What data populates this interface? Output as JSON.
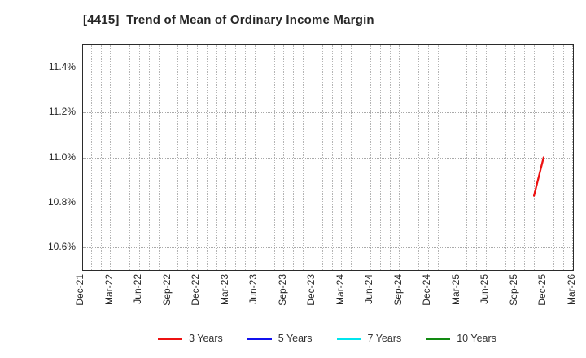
{
  "window": {
    "background_color": "#ffffff"
  },
  "chart_data": {
    "type": "line",
    "title": "[4415]  Trend of Mean of Ordinary Income Margin",
    "xlabel": "",
    "ylabel": "",
    "ylim": [
      10.5,
      11.5
    ],
    "grid": "dotted gray grid: horizontal lines every 0.2%, vertical lines every month",
    "legend_position": "bottom-center",
    "border_color": "#2b2b2b",
    "gridline_color": "#ababab",
    "y_ticks": [
      {
        "label": "11.4%",
        "value": 11.4
      },
      {
        "label": "11.2%",
        "value": 11.2
      },
      {
        "label": "11.0%",
        "value": 11.0
      },
      {
        "label": "10.8%",
        "value": 10.8
      },
      {
        "label": "10.6%",
        "value": 10.6
      }
    ],
    "x_tick_interval_months": 3,
    "x_tick_labels": [
      "Dec-21",
      "Mar-22",
      "Jun-22",
      "Sep-22",
      "Dec-22",
      "Mar-23",
      "Jun-23",
      "Sep-23",
      "Dec-23",
      "Mar-24",
      "Jun-24",
      "Sep-24",
      "Dec-24",
      "Mar-25",
      "Jun-25",
      "Sep-25",
      "Dec-25",
      "Mar-26"
    ],
    "series": [
      {
        "name": "3 Years",
        "color": "#ed1111",
        "points": [
          {
            "x": "Nov-25",
            "y": 10.83
          },
          {
            "x": "Dec-25",
            "y": 11.0
          }
        ]
      },
      {
        "name": "5 Years",
        "color": "#1111ee",
        "points": []
      },
      {
        "name": "7 Years",
        "color": "#00e5ee",
        "points": []
      },
      {
        "name": "10 Years",
        "color": "#128a12",
        "points": []
      }
    ]
  }
}
